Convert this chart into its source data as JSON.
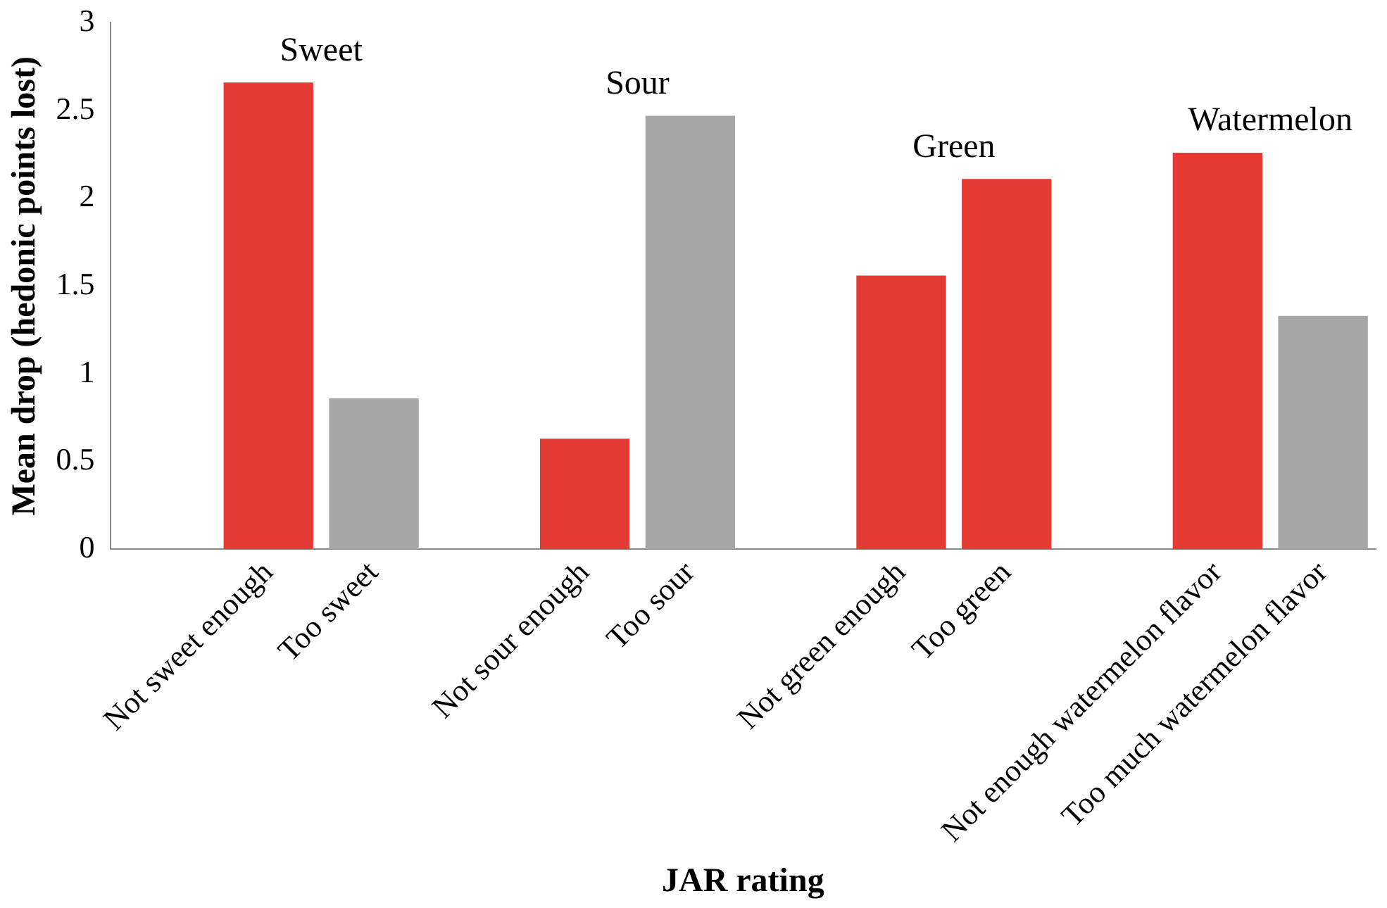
{
  "chart_data": {
    "type": "bar",
    "xlabel": "JAR rating",
    "ylabel": "Mean drop (hedonic points lost)",
    "categories": [
      null,
      "Not sweet enough",
      "Too sweet",
      null,
      "Not sour enough",
      "Too sour",
      null,
      "Not green enough",
      "Too green",
      null,
      "Not enough watermelon flavor",
      "Too much watermelon flavor"
    ],
    "values": [
      null,
      2.66,
      0.86,
      null,
      0.63,
      2.47,
      null,
      1.56,
      2.11,
      null,
      2.26,
      1.33
    ],
    "colors": [
      "#e53b35",
      "#e53b35",
      "#a6a6a6",
      "#e53b35",
      "#e53b35",
      "#a6a6a6",
      "#e53b35",
      "#e53b35",
      "#e53b35",
      "#e53b35",
      "#e53b35",
      "#a6a6a6"
    ],
    "ylim": [
      0,
      3
    ],
    "yticks": [
      0,
      0.5,
      1,
      1.5,
      2,
      2.5,
      3
    ],
    "grid": false,
    "legend": false,
    "annotations": [
      "Sweet",
      "Sour",
      "Green",
      "Watermelon"
    ]
  }
}
